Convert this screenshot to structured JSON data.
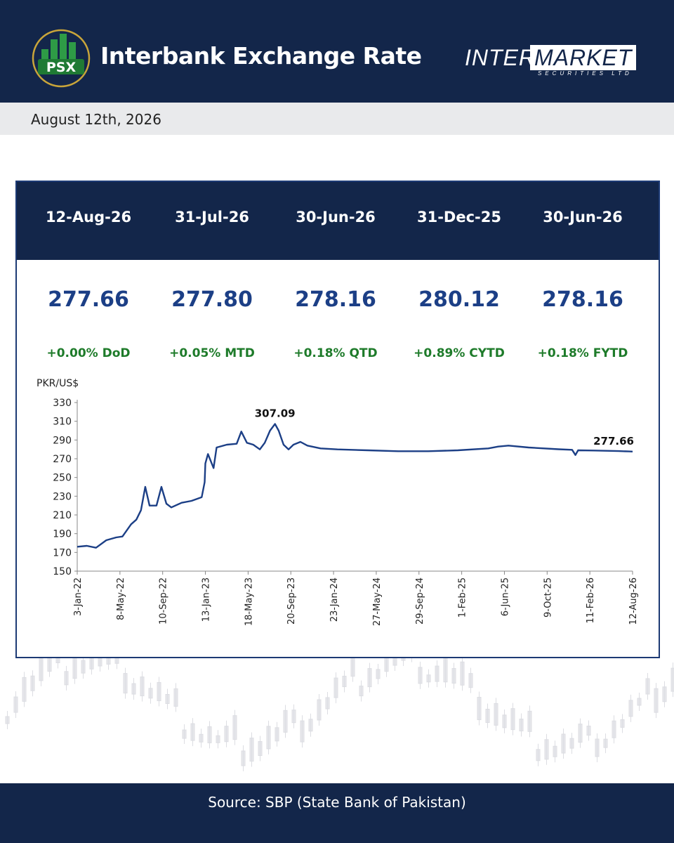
{
  "header": {
    "title": "Interbank Exchange Rate",
    "logo_text": "PSX",
    "brand_inter": "INTER",
    "brand_market": "MARKET",
    "brand_sub": "SECURITIES LTD"
  },
  "date_text": "August 12th, 2026",
  "summary": [
    {
      "date": "12-Aug-26",
      "rate": "277.66",
      "change": "+0.00% DoD"
    },
    {
      "date": "31-Jul-26",
      "rate": "277.80",
      "change": "+0.05% MTD"
    },
    {
      "date": "30-Jun-26",
      "rate": "278.16",
      "change": "+0.18% QTD"
    },
    {
      "date": "31-Dec-25",
      "rate": "280.12",
      "change": "+0.89% CYTD"
    },
    {
      "date": "30-Jun-26",
      "rate": "278.16",
      "change": "+0.18% FYTD"
    }
  ],
  "colors": {
    "navy": "#13264a",
    "line": "#1c3f86",
    "positive": "#1e7b2a"
  },
  "chart_data": {
    "type": "line",
    "ylabel": "PKR/US$",
    "ylim": [
      150,
      330
    ],
    "yticks": [
      150,
      170,
      190,
      210,
      230,
      250,
      270,
      290,
      310,
      330
    ],
    "x_tick_labels": [
      "3-Jan-22",
      "8-May-22",
      "10-Sep-22",
      "13-Jan-23",
      "18-May-23",
      "20-Sep-23",
      "23-Jan-24",
      "27-May-24",
      "29-Sep-24",
      "1-Feb-25",
      "6-Jun-25",
      "9-Oct-25",
      "11-Feb-26",
      "12-Aug-26"
    ],
    "grid": false,
    "series": [
      {
        "x": [
          "2022-01-03",
          "2022-02-01",
          "2022-03-01",
          "2022-04-01",
          "2022-05-01",
          "2022-05-20",
          "2022-06-15",
          "2022-07-01",
          "2022-07-15",
          "2022-07-28",
          "2022-08-10",
          "2022-08-31",
          "2022-09-15",
          "2022-09-30",
          "2022-10-15",
          "2022-11-15",
          "2022-12-15",
          "2023-01-15",
          "2023-01-24",
          "2023-01-26",
          "2023-02-03",
          "2023-02-20",
          "2023-03-01",
          "2023-04-01",
          "2023-05-01",
          "2023-05-15",
          "2023-06-01",
          "2023-06-20",
          "2023-07-10",
          "2023-07-25",
          "2023-08-10",
          "2023-08-25",
          "2023-09-05",
          "2023-09-20",
          "2023-10-05",
          "2023-10-20",
          "2023-11-10",
          "2023-12-01",
          "2024-01-10",
          "2024-03-01",
          "2024-06-01",
          "2024-09-01",
          "2024-12-01",
          "2025-03-01",
          "2025-06-01",
          "2025-07-01",
          "2025-08-01",
          "2025-10-01",
          "2025-12-31",
          "2026-02-10",
          "2026-02-20",
          "2026-02-28",
          "2026-04-15",
          "2026-06-30",
          "2026-07-31",
          "2026-08-12"
        ],
        "y": [
          176,
          177,
          175,
          183,
          186,
          187,
          200,
          205,
          215,
          240,
          220,
          220,
          240,
          222,
          218,
          223,
          225,
          229,
          245,
          265,
          275,
          260,
          282,
          285,
          286,
          299,
          287,
          285,
          280,
          287,
          300,
          307.09,
          300,
          285,
          280,
          285,
          288,
          284,
          281,
          280,
          279,
          278,
          278,
          279,
          281,
          283,
          284,
          282,
          280.12,
          279.5,
          274,
          279,
          278.8,
          278.16,
          277.8,
          277.66
        ]
      }
    ],
    "annotations": [
      {
        "label": "307.09",
        "x": "2023-08-25",
        "y": 307.09
      },
      {
        "label": "277.66",
        "x": "2026-08-12",
        "y": 277.66
      }
    ]
  },
  "footer": {
    "source": "Source: SBP (State Bank of Pakistan)"
  }
}
